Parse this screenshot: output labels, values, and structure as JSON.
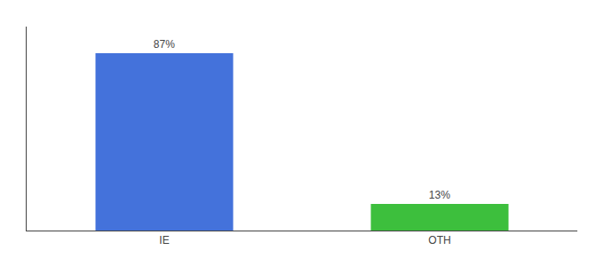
{
  "chart_data": {
    "type": "bar",
    "categories": [
      "IE",
      "OTH"
    ],
    "values": [
      87,
      13
    ],
    "value_labels": [
      "87%",
      "13%"
    ],
    "data_labels": true,
    "colors": [
      "#4472db",
      "#3dbf3d"
    ],
    "ylim": [
      0,
      100
    ],
    "grid": false,
    "tick_labels": "x"
  }
}
